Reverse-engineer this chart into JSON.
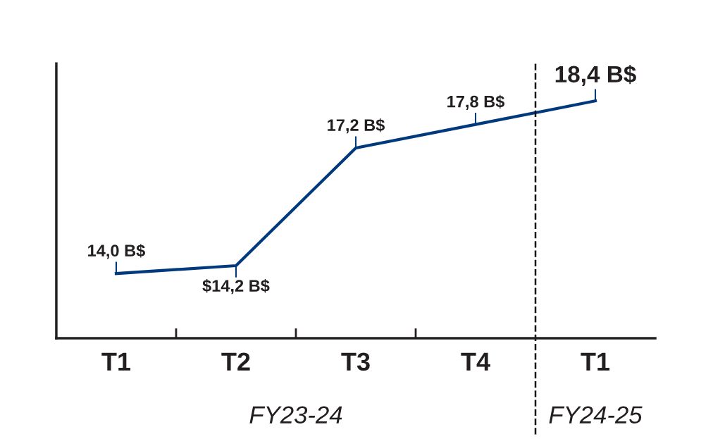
{
  "chart_data": {
    "type": "line",
    "categories": [
      "T1",
      "T2",
      "T3",
      "T4",
      "T1"
    ],
    "series": [
      {
        "color": "#003a7d",
        "values": [
          14.0,
          14.2,
          17.2,
          17.8,
          18.4
        ],
        "value_labels": [
          "14,0 B$",
          "$14,2 B$",
          "17,2 B$",
          "17,8 B$",
          "18,4 B$"
        ]
      }
    ],
    "ylim": [
      12.35,
      19.35
    ],
    "tick_labels": "x",
    "grid": false,
    "legend": false,
    "marker": "none",
    "line_style": "solid",
    "annotations": [
      "FY23-24",
      "FY24-25"
    ]
  }
}
